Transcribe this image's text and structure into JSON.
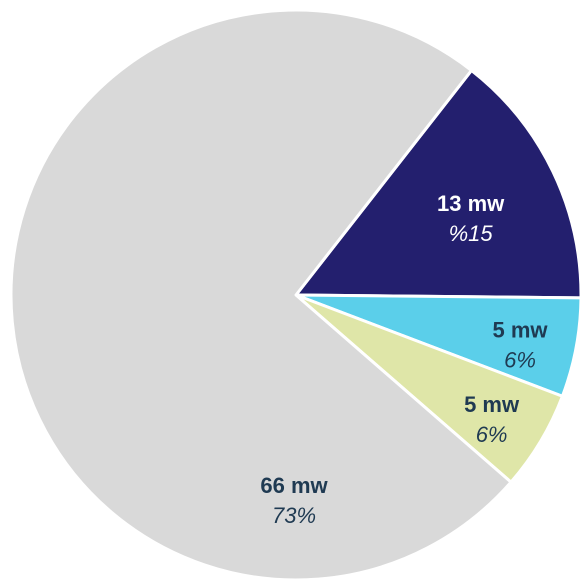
{
  "chart_data": {
    "type": "pie",
    "title": "",
    "start_angle_deg": -52,
    "direction": "clockwise",
    "slices": [
      {
        "value": 13,
        "value_label": "13 mw",
        "percent_label": "%15",
        "color": "#231f6e",
        "text_color": "#ffffff",
        "pct_color": "#ffffff"
      },
      {
        "value": 5,
        "value_label": "5 mw",
        "percent_label": "6%",
        "color": "#5bcfea",
        "text_color": "#1f3a52",
        "pct_color": "#1f3a52"
      },
      {
        "value": 5,
        "value_label": "5 mw",
        "percent_label": "6%",
        "color": "#dfe6a8",
        "text_color": "#1f3a52",
        "pct_color": "#1f3a52"
      },
      {
        "value": 66,
        "value_label": "66 mw",
        "percent_label": "73%",
        "color": "#d9d9d9",
        "text_color": "#1f3a52",
        "pct_color": "#1f3a52"
      }
    ]
  }
}
